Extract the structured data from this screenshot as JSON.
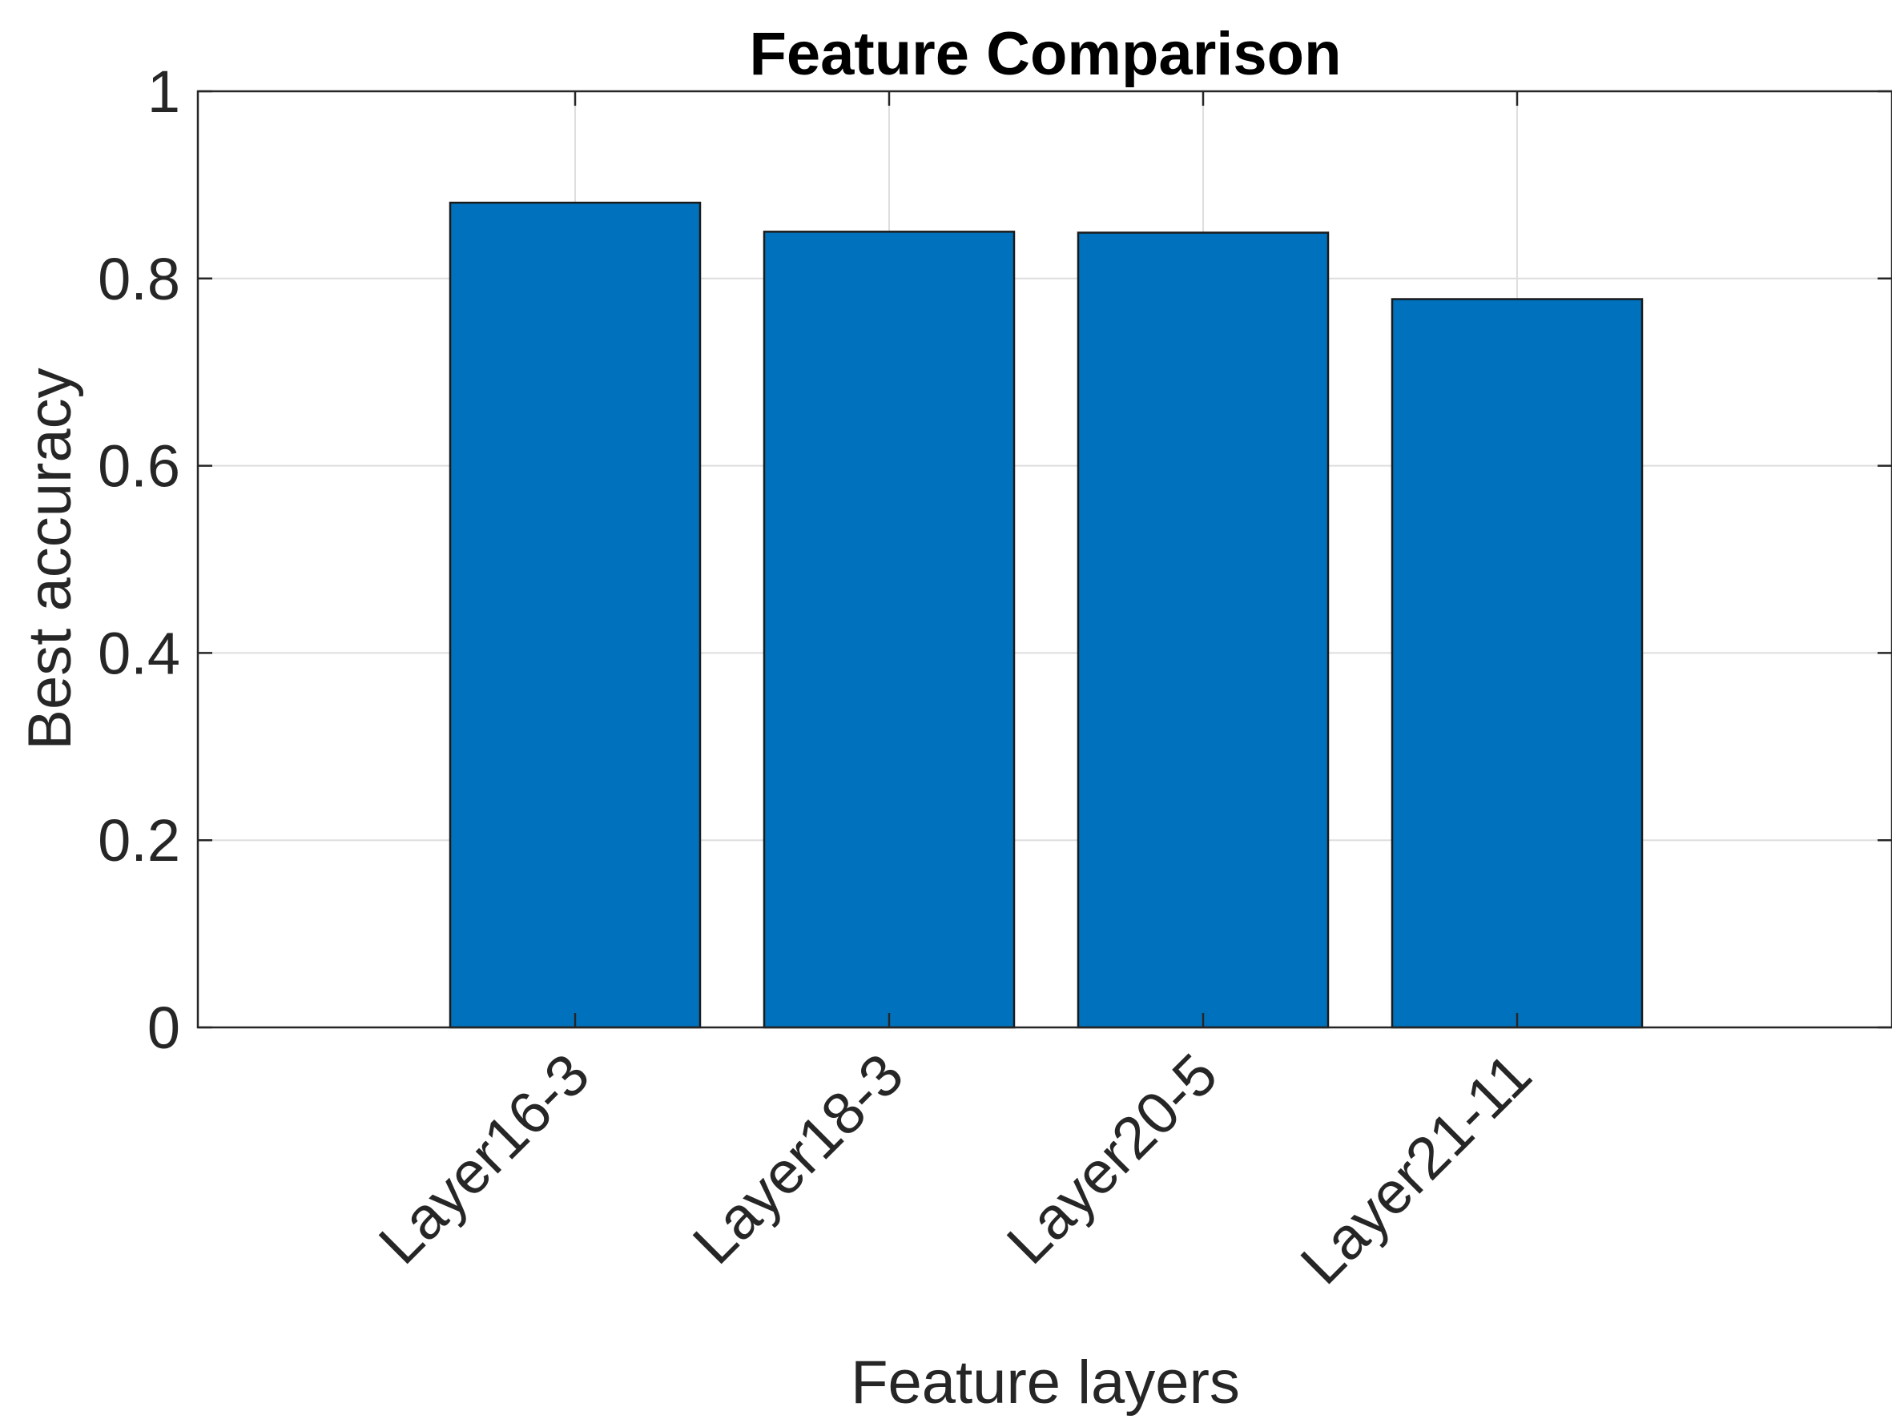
{
  "chart_data": {
    "type": "bar",
    "title": "Feature Comparison",
    "xlabel": "Feature layers",
    "ylabel": "Best accuracy",
    "categories": [
      "Layer16-3",
      "Layer18-3",
      "Layer20-5",
      "Layer21-11"
    ],
    "values": [
      0.881,
      0.85,
      0.849,
      0.778
    ],
    "ylim": [
      0,
      1
    ],
    "yticks": [
      "0",
      "0.2",
      "0.4",
      "0.6",
      "0.8",
      "1"
    ],
    "ytick_values": [
      0,
      0.2,
      0.4,
      0.6,
      0.8,
      1
    ],
    "grid": true,
    "bar_color": "#0072bd",
    "edge_color": "#1a1a1a"
  }
}
